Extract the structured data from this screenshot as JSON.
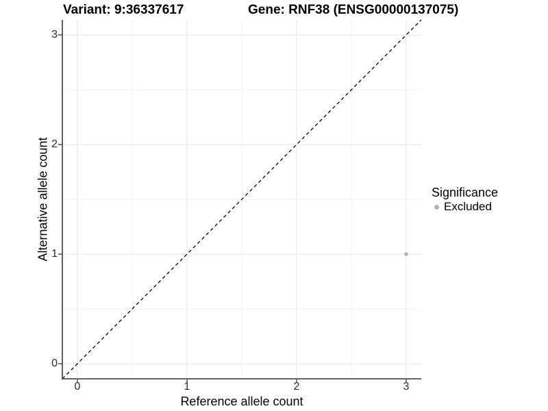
{
  "figure": {
    "title_variant": "Variant: 9:36337617",
    "title_gene": "Gene: RNF38 (ENSG00000137075)"
  },
  "chart_data": {
    "type": "scatter",
    "title": "Variant: 9:36337617   Gene: RNF38 (ENSG00000137075)",
    "xlabel": "Reference allele count",
    "ylabel": "Alternative allele count",
    "x_ticks": [
      0,
      1,
      2,
      3
    ],
    "y_ticks": [
      0,
      1,
      2,
      3
    ],
    "xlim": [
      -0.14,
      3.14
    ],
    "ylim": [
      -0.14,
      3.14
    ],
    "grid": {
      "major": true,
      "minor": true
    },
    "reference_line": {
      "type": "identity",
      "equation": "y = x",
      "style": "dashed",
      "color": "#000000"
    },
    "series": [
      {
        "name": "Excluded",
        "color": "#b3b3b3",
        "points": [
          {
            "x": 3,
            "y": 1
          }
        ]
      }
    ],
    "legend": {
      "title": "Significance",
      "position": "right",
      "items": [
        {
          "label": "Excluded",
          "color": "#b3b3b3"
        }
      ]
    }
  },
  "colors": {
    "background": "#ffffff",
    "grid_major": "#e5e5e5",
    "grid_minor": "#f2f2f2",
    "axis_line": "#4d4d4d",
    "tick_mark": "#333333",
    "tick_label": "#2b2b2b",
    "text": "#000000"
  }
}
